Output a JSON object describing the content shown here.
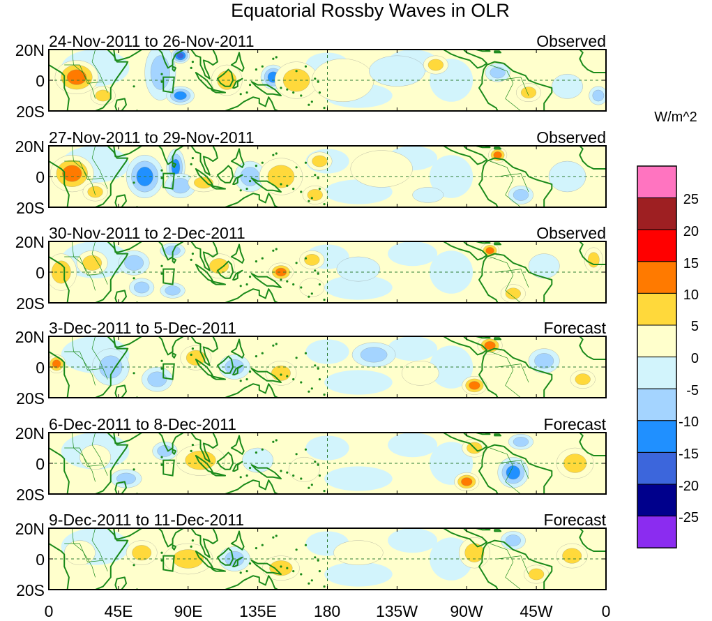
{
  "title": "Equatorial Rossby Waves in OLR",
  "colorbar": {
    "units": "W/m^2",
    "labels": [
      "25",
      "20",
      "15",
      "10",
      "5",
      "0",
      "-5",
      "-10",
      "-15",
      "-20",
      "-25"
    ],
    "colors_top_to_bottom": [
      "#ff74c0",
      "#9e1f22",
      "#ff0000",
      "#ff7a00",
      "#ffd93b",
      "#ffffcc",
      "#d2f4fc",
      "#a4d4ff",
      "#2090ff",
      "#3c66dc",
      "#00008c",
      "#8b2cf0"
    ]
  },
  "colors": {
    "coastline": "#1a8a1a",
    "gridline": "#2e7d32",
    "frame": "#000000"
  },
  "axes": {
    "lon_ticks": [
      "0",
      "45E",
      "90E",
      "135E",
      "180",
      "135W",
      "90W",
      "45W",
      "0"
    ],
    "lat_ticks": [
      "20N",
      "0",
      "20S"
    ]
  },
  "panels": [
    {
      "date_range": "24-Nov-2011 to 26-Nov-2011",
      "status": "Observed",
      "anomalies": [
        {
          "lon": 18,
          "lat": 2,
          "rlon": 14,
          "rlat": 11,
          "v": 14
        },
        {
          "lon": 35,
          "lat": -10,
          "rlon": 8,
          "rlat": 6,
          "v": 9
        },
        {
          "lon": 72,
          "lat": 5,
          "rlon": 10,
          "rlat": 18,
          "v": -8
        },
        {
          "lon": 85,
          "lat": 16,
          "rlon": 6,
          "rlat": 5,
          "v": -18
        },
        {
          "lon": 85,
          "lat": -10,
          "rlon": 9,
          "rlat": 6,
          "v": -13
        },
        {
          "lon": 115,
          "lat": 0,
          "rlon": 10,
          "rlat": 10,
          "v": 8
        },
        {
          "lon": 145,
          "lat": 2,
          "rlon": 8,
          "rlat": 8,
          "v": -12
        },
        {
          "lon": 160,
          "lat": 0,
          "rlon": 7,
          "rlat": 6,
          "v": 22
        },
        {
          "lon": 160,
          "lat": 0,
          "rlon": 14,
          "rlat": 12,
          "v": 7
        },
        {
          "lon": 190,
          "lat": 0,
          "rlon": 20,
          "rlat": 14,
          "v": 4
        },
        {
          "lon": 225,
          "lat": 6,
          "rlon": 18,
          "rlat": 10,
          "v": -4
        },
        {
          "lon": 250,
          "lat": 10,
          "rlon": 8,
          "rlat": 6,
          "v": 6
        },
        {
          "lon": 290,
          "lat": 5,
          "rlon": 8,
          "rlat": 6,
          "v": -8
        },
        {
          "lon": 310,
          "lat": -8,
          "rlon": 8,
          "rlat": 6,
          "v": 7
        },
        {
          "lon": 335,
          "lat": -4,
          "rlon": 10,
          "rlat": 8,
          "v": -4
        },
        {
          "lon": 355,
          "lat": -10,
          "rlon": 6,
          "rlat": 6,
          "v": -10
        }
      ]
    },
    {
      "date_range": "27-Nov-2011 to 29-Nov-2011",
      "status": "Observed",
      "anomalies": [
        {
          "lon": 15,
          "lat": 2,
          "rlon": 14,
          "rlat": 12,
          "v": 12
        },
        {
          "lon": 30,
          "lat": -10,
          "rlon": 8,
          "rlat": 6,
          "v": 7
        },
        {
          "lon": 62,
          "lat": 0,
          "rlon": 12,
          "rlat": 14,
          "v": -12
        },
        {
          "lon": 82,
          "lat": 6,
          "rlon": 6,
          "rlat": 12,
          "v": -14
        },
        {
          "lon": 85,
          "lat": -6,
          "rlon": 10,
          "rlat": 8,
          "v": -8
        },
        {
          "lon": 100,
          "lat": -4,
          "rlon": 10,
          "rlat": 6,
          "v": 6
        },
        {
          "lon": 130,
          "lat": 0,
          "rlon": 10,
          "rlat": 10,
          "v": -6
        },
        {
          "lon": 150,
          "lat": 0,
          "rlon": 8,
          "rlat": 8,
          "v": 20
        },
        {
          "lon": 150,
          "lat": 0,
          "rlon": 14,
          "rlat": 12,
          "v": 7
        },
        {
          "lon": 175,
          "lat": 10,
          "rlon": 8,
          "rlat": 6,
          "v": 6
        },
        {
          "lon": 172,
          "lat": -12,
          "rlon": 8,
          "rlat": 6,
          "v": 6
        },
        {
          "lon": 215,
          "lat": 5,
          "rlon": 20,
          "rlat": 12,
          "v": 3
        },
        {
          "lon": 245,
          "lat": -12,
          "rlon": 10,
          "rlat": 5,
          "v": -4
        },
        {
          "lon": 290,
          "lat": 14,
          "rlon": 6,
          "rlat": 5,
          "v": 12
        },
        {
          "lon": 305,
          "lat": -12,
          "rlon": 8,
          "rlat": 6,
          "v": -7
        },
        {
          "lon": 335,
          "lat": 0,
          "rlon": 12,
          "rlat": 10,
          "v": -5
        }
      ]
    },
    {
      "date_range": "30-Nov-2011 to 2-Dec-2011",
      "status": "Observed",
      "anomalies": [
        {
          "lon": 8,
          "lat": 0,
          "rlon": 10,
          "rlat": 12,
          "v": 10
        },
        {
          "lon": 28,
          "lat": 6,
          "rlon": 10,
          "rlat": 8,
          "v": 6
        },
        {
          "lon": 55,
          "lat": 6,
          "rlon": 10,
          "rlat": 8,
          "v": -8
        },
        {
          "lon": 60,
          "lat": -10,
          "rlon": 8,
          "rlat": 6,
          "v": -10
        },
        {
          "lon": 80,
          "lat": 14,
          "rlon": 8,
          "rlat": 5,
          "v": -8
        },
        {
          "lon": 80,
          "lat": -12,
          "rlon": 8,
          "rlat": 5,
          "v": -9
        },
        {
          "lon": 110,
          "lat": 4,
          "rlon": 10,
          "rlat": 8,
          "v": 6
        },
        {
          "lon": 150,
          "lat": 0,
          "rlon": 8,
          "rlat": 6,
          "v": 12
        },
        {
          "lon": 170,
          "lat": 8,
          "rlon": 8,
          "rlat": 6,
          "v": 6
        },
        {
          "lon": 170,
          "lat": -10,
          "rlon": 8,
          "rlat": 6,
          "v": 5
        },
        {
          "lon": 200,
          "lat": 2,
          "rlon": 14,
          "rlat": 8,
          "v": -5
        },
        {
          "lon": 285,
          "lat": 14,
          "rlon": 6,
          "rlat": 5,
          "v": 13
        },
        {
          "lon": 300,
          "lat": -14,
          "rlon": 8,
          "rlat": 6,
          "v": 7
        },
        {
          "lon": 320,
          "lat": 4,
          "rlon": 10,
          "rlat": 8,
          "v": -5
        },
        {
          "lon": 352,
          "lat": 8,
          "rlon": 6,
          "rlat": 8,
          "v": 7
        }
      ]
    },
    {
      "date_range": "3-Dec-2011 to 5-Dec-2011",
      "status": "Forecast",
      "anomalies": [
        {
          "lon": 5,
          "lat": 2,
          "rlon": 6,
          "rlat": 6,
          "v": 11
        },
        {
          "lon": 40,
          "lat": 0,
          "rlon": 12,
          "rlat": 12,
          "v": -7
        },
        {
          "lon": 70,
          "lat": -8,
          "rlon": 10,
          "rlat": 8,
          "v": -9
        },
        {
          "lon": 95,
          "lat": 6,
          "rlon": 10,
          "rlat": 8,
          "v": 6
        },
        {
          "lon": 120,
          "lat": 0,
          "rlon": 10,
          "rlat": 8,
          "v": -8
        },
        {
          "lon": 150,
          "lat": -4,
          "rlon": 10,
          "rlat": 8,
          "v": 6
        },
        {
          "lon": 210,
          "lat": 8,
          "rlon": 14,
          "rlat": 8,
          "v": -6
        },
        {
          "lon": 240,
          "lat": -4,
          "rlon": 12,
          "rlat": 8,
          "v": 5
        },
        {
          "lon": 285,
          "lat": 14,
          "rlon": 8,
          "rlat": 6,
          "v": 12
        },
        {
          "lon": 275,
          "lat": -12,
          "rlon": 8,
          "rlat": 6,
          "v": 12
        },
        {
          "lon": 320,
          "lat": 4,
          "rlon": 10,
          "rlat": 8,
          "v": -6
        },
        {
          "lon": 345,
          "lat": -8,
          "rlon": 8,
          "rlat": 6,
          "v": 10
        }
      ]
    },
    {
      "date_range": "6-Dec-2011 to 8-Dec-2011",
      "status": "Forecast",
      "anomalies": [
        {
          "lon": 30,
          "lat": 4,
          "rlon": 10,
          "rlat": 8,
          "v": 5
        },
        {
          "lon": 50,
          "lat": -10,
          "rlon": 10,
          "rlat": 6,
          "v": -8
        },
        {
          "lon": 75,
          "lat": 8,
          "rlon": 8,
          "rlat": 6,
          "v": -6
        },
        {
          "lon": 98,
          "lat": 2,
          "rlon": 10,
          "rlat": 6,
          "v": 14
        },
        {
          "lon": 98,
          "lat": 2,
          "rlon": 16,
          "rlat": 10,
          "v": 6
        },
        {
          "lon": 135,
          "lat": 2,
          "rlon": 10,
          "rlat": 8,
          "v": -5
        },
        {
          "lon": 165,
          "lat": -4,
          "rlon": 10,
          "rlat": 8,
          "v": 4
        },
        {
          "lon": 275,
          "lat": 10,
          "rlon": 8,
          "rlat": 6,
          "v": 7
        },
        {
          "lon": 270,
          "lat": -12,
          "rlon": 8,
          "rlat": 6,
          "v": 12
        },
        {
          "lon": 300,
          "lat": -6,
          "rlon": 10,
          "rlat": 10,
          "v": -12
        },
        {
          "lon": 305,
          "lat": 14,
          "rlon": 8,
          "rlat": 5,
          "v": -8
        },
        {
          "lon": 340,
          "lat": 0,
          "rlon": 12,
          "rlat": 10,
          "v": 6
        }
      ]
    },
    {
      "date_range": "9-Dec-2011 to 11-Dec-2011",
      "status": "Forecast",
      "anomalies": [
        {
          "lon": 20,
          "lat": 4,
          "rlon": 10,
          "rlat": 8,
          "v": 5
        },
        {
          "lon": 60,
          "lat": 4,
          "rlon": 10,
          "rlat": 8,
          "v": 6
        },
        {
          "lon": 88,
          "lat": 2,
          "rlon": 7,
          "rlat": 5,
          "v": 22
        },
        {
          "lon": 90,
          "lat": 0,
          "rlon": 16,
          "rlat": 10,
          "v": 8
        },
        {
          "lon": 120,
          "lat": 0,
          "rlon": 10,
          "rlat": 8,
          "v": -6
        },
        {
          "lon": 150,
          "lat": -6,
          "rlon": 12,
          "rlat": 8,
          "v": 6
        },
        {
          "lon": 200,
          "lat": 4,
          "rlon": 16,
          "rlat": 8,
          "v": 3
        },
        {
          "lon": 275,
          "lat": 4,
          "rlon": 10,
          "rlat": 10,
          "v": 6
        },
        {
          "lon": 300,
          "lat": 12,
          "rlon": 8,
          "rlat": 6,
          "v": -6
        },
        {
          "lon": 315,
          "lat": -10,
          "rlon": 8,
          "rlat": 6,
          "v": 6
        },
        {
          "lon": 338,
          "lat": 2,
          "rlon": 10,
          "rlat": 8,
          "v": 9
        }
      ]
    }
  ]
}
